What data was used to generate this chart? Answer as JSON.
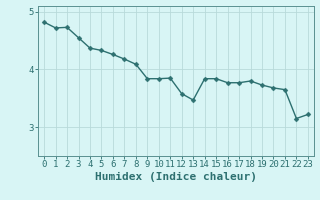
{
  "x": [
    0,
    1,
    2,
    3,
    4,
    5,
    6,
    7,
    8,
    9,
    10,
    11,
    12,
    13,
    14,
    15,
    16,
    17,
    18,
    19,
    20,
    21,
    22,
    23
  ],
  "y": [
    4.82,
    4.72,
    4.73,
    4.55,
    4.37,
    4.33,
    4.26,
    4.18,
    4.09,
    3.84,
    3.84,
    3.85,
    3.58,
    3.47,
    3.84,
    3.84,
    3.77,
    3.77,
    3.8,
    3.73,
    3.68,
    3.65,
    3.15,
    3.22
  ],
  "line_color": "#2d7070",
  "marker": "D",
  "markersize": 2.5,
  "linewidth": 1.0,
  "background_color": "#d8f5f5",
  "grid_color": "#b8dada",
  "xlabel": "Humidex (Indice chaleur)",
  "xlabel_fontsize": 8,
  "xlabel_color": "#2d7070",
  "yticks": [
    3,
    4,
    5
  ],
  "ylim": [
    2.5,
    5.1
  ],
  "xlim": [
    -0.5,
    23.5
  ],
  "xtick_labels": [
    "0",
    "1",
    "2",
    "3",
    "4",
    "5",
    "6",
    "7",
    "8",
    "9",
    "10",
    "11",
    "12",
    "13",
    "14",
    "15",
    "16",
    "17",
    "18",
    "19",
    "20",
    "21",
    "22",
    "23"
  ],
  "tick_color": "#2d7070",
  "tick_fontsize": 6.5,
  "spine_color": "#5a9090"
}
